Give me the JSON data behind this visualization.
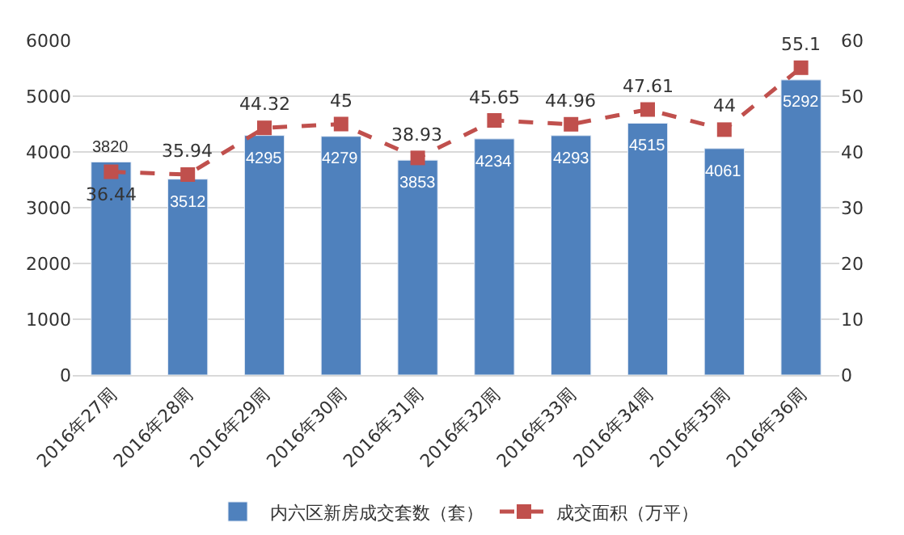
{
  "chart_data": {
    "type": "bar",
    "categories": [
      "2016年27周",
      "2016年28周",
      "2016年29周",
      "2016年30周",
      "2016年31周",
      "2016年32周",
      "2016年33周",
      "2016年34周",
      "2016年35周",
      "2016年36周"
    ],
    "series": [
      {
        "name": "内六区新房成交套数（套）",
        "color": "#4f81bd",
        "values": [
          3820,
          3512,
          4295,
          4279,
          3853,
          4234,
          4293,
          4515,
          4061,
          5292
        ]
      },
      {
        "name": "成交面积（万平）",
        "type": "line",
        "axis": "y2",
        "color": "#c0504d",
        "marker": "square",
        "line_style": "dashed",
        "values": [
          36.44,
          35.94,
          44.32,
          45,
          38.93,
          45.65,
          44.96,
          47.61,
          44,
          55.1
        ]
      }
    ],
    "ylim": [
      0,
      6000
    ],
    "yticks": [
      0,
      1000,
      2000,
      3000,
      4000,
      5000,
      6000
    ],
    "y2lim": [
      0,
      60
    ],
    "y2ticks": [
      0,
      10,
      20,
      30,
      40,
      50,
      60
    ],
    "grid": "y",
    "legend": "bottom",
    "data_labels": true
  }
}
